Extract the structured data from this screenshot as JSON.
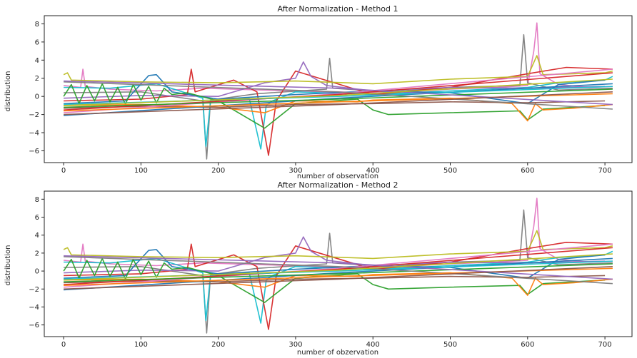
{
  "chart_data": [
    {
      "type": "line",
      "title": "After Normalization - Method 1",
      "xlabel": "number of observation",
      "ylabel": "distribution",
      "xlim": [
        -25,
        735
      ],
      "ylim": [
        -7.3,
        8.9
      ],
      "xticks": [
        0,
        100,
        200,
        300,
        400,
        500,
        600,
        700
      ],
      "yticks": [
        -6,
        -4,
        -2,
        0,
        2,
        4,
        6,
        8
      ],
      "grid": false,
      "legend": "none",
      "palette": [
        "#1f77b4",
        "#ff7f0e",
        "#2ca02c",
        "#d62728",
        "#9467bd",
        "#8c564b",
        "#e377c2",
        "#7f7f7f",
        "#bcbd22",
        "#17becf"
      ],
      "series": [
        {
          "color": "#e377c2",
          "x": [
            0,
            22,
            25,
            28,
            60,
            120,
            180,
            260,
            340,
            420,
            500,
            560,
            600,
            608,
            612,
            616,
            640,
            680,
            710
          ],
          "y": [
            1.2,
            1.0,
            3.0,
            1.1,
            0.8,
            0.6,
            0.9,
            0.7,
            0.5,
            0.4,
            0.8,
            1.0,
            1.2,
            5.0,
            8.1,
            2.5,
            1.3,
            1.0,
            1.1
          ]
        },
        {
          "color": "#7f7f7f",
          "x": [
            0,
            100,
            180,
            185,
            190,
            250,
            340,
            344,
            348,
            420,
            500,
            590,
            595,
            600,
            640,
            710
          ],
          "y": [
            0.4,
            0.5,
            -0.5,
            -6.9,
            -0.4,
            0.3,
            0.8,
            4.2,
            0.9,
            0.5,
            1.0,
            1.2,
            6.8,
            1.5,
            0.7,
            0.9
          ]
        },
        {
          "color": "#17becf",
          "x": [
            0,
            60,
            120,
            180,
            184,
            190,
            240,
            255,
            262,
            270,
            300,
            400,
            500,
            600,
            640,
            700,
            710
          ],
          "y": [
            1.0,
            0.9,
            1.4,
            -0.2,
            -5.5,
            -0.5,
            -0.2,
            -5.8,
            -1.0,
            -0.5,
            0.5,
            0.2,
            0.6,
            1.0,
            1.5,
            1.8,
            2.2
          ]
        },
        {
          "color": "#d62728",
          "x": [
            0,
            100,
            160,
            165,
            170,
            220,
            250,
            265,
            275,
            300,
            400,
            500,
            600,
            650,
            710
          ],
          "y": [
            -0.5,
            -0.3,
            0.2,
            3.0,
            0.5,
            1.8,
            0.5,
            -6.5,
            -0.5,
            2.8,
            0.2,
            1.0,
            2.5,
            3.2,
            3.0
          ]
        },
        {
          "color": "#9467bd",
          "x": [
            0,
            100,
            200,
            260,
            300,
            310,
            320,
            340,
            400,
            500,
            600,
            700
          ],
          "y": [
            -0.2,
            0.1,
            0.0,
            1.5,
            2.0,
            3.8,
            2.2,
            1.2,
            0.6,
            1.0,
            0.9,
            1.1
          ]
        },
        {
          "color": "#1f77b4",
          "x": [
            0,
            80,
            110,
            120,
            140,
            200,
            300,
            400,
            500,
            600,
            640,
            700
          ],
          "y": [
            -0.8,
            -0.5,
            2.3,
            2.4,
            0.5,
            -0.3,
            0.2,
            0.6,
            0.4,
            -0.8,
            1.3,
            1.8
          ]
        },
        {
          "color": "#2ca02c",
          "x": [
            0,
            10,
            20,
            30,
            40,
            50,
            60,
            70,
            80,
            90,
            100,
            110,
            120,
            130,
            140,
            160,
            200,
            260,
            300,
            380,
            400,
            420,
            500,
            590,
            600,
            620,
            700
          ],
          "y": [
            0.0,
            1.3,
            -0.8,
            1.2,
            -0.5,
            1.4,
            -0.6,
            1.0,
            -0.9,
            1.3,
            -0.4,
            1.1,
            -0.7,
            0.9,
            0.2,
            0.4,
            -0.5,
            -3.5,
            -0.8,
            -0.3,
            -1.5,
            -2.0,
            -1.8,
            -1.6,
            -2.6,
            -1.4,
            -1.0
          ]
        },
        {
          "color": "#ff7f0e",
          "x": [
            0,
            100,
            200,
            260,
            300,
            380,
            400,
            500,
            580,
            600,
            610,
            620,
            660,
            710
          ],
          "y": [
            -1.0,
            -0.9,
            -1.2,
            -1.8,
            -0.5,
            -0.6,
            -0.4,
            -0.2,
            -0.8,
            -2.7,
            -0.8,
            -1.5,
            -1.3,
            -0.9
          ]
        },
        {
          "color": "#bcbd22",
          "x": [
            0,
            5,
            10,
            100,
            200,
            300,
            400,
            500,
            600,
            612,
            620,
            700,
            710
          ],
          "y": [
            2.4,
            2.6,
            1.8,
            1.6,
            1.5,
            1.7,
            1.4,
            1.9,
            2.2,
            4.5,
            2.4,
            2.6,
            2.8
          ]
        },
        {
          "color": "#8c564b",
          "x": [
            0,
            100,
            200,
            300,
            400,
            500,
            600,
            700
          ],
          "y": [
            -1.3,
            -1.1,
            -1.2,
            -0.9,
            -0.8,
            -0.6,
            -0.7,
            -0.5
          ]
        },
        {
          "color": "#e377c2",
          "x": [
            0,
            355,
            710
          ],
          "y": [
            -1.8,
            0.3,
            3.0
          ]
        },
        {
          "color": "#d62728",
          "x": [
            0,
            355,
            710
          ],
          "y": [
            -1.5,
            0.2,
            2.6
          ]
        },
        {
          "color": "#1f77b4",
          "x": [
            0,
            355,
            710
          ],
          "y": [
            -2.1,
            -0.2,
            1.4
          ]
        },
        {
          "color": "#2ca02c",
          "x": [
            0,
            355,
            710
          ],
          "y": [
            -1.2,
            -0.3,
            0.8
          ]
        },
        {
          "color": "#17becf",
          "x": [
            0,
            355,
            710
          ],
          "y": [
            -0.9,
            0.0,
            1.1
          ]
        },
        {
          "color": "#7f7f7f",
          "x": [
            0,
            355,
            710
          ],
          "y": [
            1.6,
            0.5,
            -1.4
          ]
        },
        {
          "color": "#ff7f0e",
          "x": [
            0,
            355,
            710
          ],
          "y": [
            -1.6,
            -0.6,
            0.3
          ]
        },
        {
          "color": "#9467bd",
          "x": [
            0,
            355,
            710
          ],
          "y": [
            1.7,
            0.9,
            -0.9
          ]
        },
        {
          "color": "#8c564b",
          "x": [
            0,
            355,
            710
          ],
          "y": [
            -2.0,
            -0.9,
            0.5
          ]
        },
        {
          "color": "#bcbd22",
          "x": [
            0,
            355,
            710
          ],
          "y": [
            -1.0,
            0.1,
            1.9
          ]
        }
      ]
    },
    {
      "type": "line",
      "title": "After Normalization - Method 2",
      "xlabel": "number of obzervation",
      "ylabel": "distribution",
      "xlim": [
        -25,
        735
      ],
      "ylim": [
        -7.3,
        8.9
      ],
      "xticks": [
        0,
        100,
        200,
        300,
        400,
        500,
        600,
        700
      ],
      "yticks": [
        -6,
        -4,
        -2,
        0,
        2,
        4,
        6,
        8
      ],
      "grid": false,
      "legend": "none",
      "palette": [
        "#1f77b4",
        "#ff7f0e",
        "#2ca02c",
        "#d62728",
        "#9467bd",
        "#8c564b",
        "#e377c2",
        "#7f7f7f",
        "#bcbd22",
        "#17becf"
      ],
      "series": [
        {
          "color": "#e377c2",
          "x": [
            0,
            22,
            25,
            28,
            60,
            120,
            180,
            260,
            340,
            420,
            500,
            560,
            600,
            608,
            612,
            616,
            640,
            680,
            710
          ],
          "y": [
            1.2,
            1.0,
            3.0,
            1.1,
            0.8,
            0.6,
            0.9,
            0.7,
            0.5,
            0.4,
            0.8,
            1.0,
            1.2,
            5.0,
            8.1,
            2.5,
            1.3,
            1.0,
            1.1
          ]
        },
        {
          "color": "#7f7f7f",
          "x": [
            0,
            100,
            180,
            185,
            190,
            250,
            340,
            344,
            348,
            420,
            500,
            590,
            595,
            600,
            640,
            710
          ],
          "y": [
            0.4,
            0.5,
            -0.5,
            -6.9,
            -0.4,
            0.3,
            0.8,
            4.2,
            0.9,
            0.5,
            1.0,
            1.2,
            6.8,
            1.5,
            0.7,
            0.9
          ]
        },
        {
          "color": "#17becf",
          "x": [
            0,
            60,
            120,
            180,
            184,
            190,
            240,
            255,
            262,
            270,
            300,
            400,
            500,
            600,
            640,
            700,
            710
          ],
          "y": [
            1.0,
            0.9,
            1.4,
            -0.2,
            -5.5,
            -0.5,
            -0.2,
            -5.8,
            -1.0,
            -0.5,
            0.5,
            0.2,
            0.6,
            1.0,
            1.5,
            1.8,
            2.2
          ]
        },
        {
          "color": "#d62728",
          "x": [
            0,
            100,
            160,
            165,
            170,
            220,
            250,
            265,
            275,
            300,
            400,
            500,
            600,
            650,
            710
          ],
          "y": [
            -0.5,
            -0.3,
            0.2,
            3.0,
            0.5,
            1.8,
            0.5,
            -6.5,
            -0.5,
            2.8,
            0.2,
            1.0,
            2.5,
            3.2,
            3.0
          ]
        },
        {
          "color": "#9467bd",
          "x": [
            0,
            100,
            200,
            260,
            300,
            310,
            320,
            340,
            400,
            500,
            600,
            700
          ],
          "y": [
            -0.2,
            0.1,
            0.0,
            1.5,
            2.0,
            3.8,
            2.2,
            1.2,
            0.6,
            1.0,
            0.9,
            1.1
          ]
        },
        {
          "color": "#1f77b4",
          "x": [
            0,
            80,
            110,
            120,
            140,
            200,
            300,
            400,
            500,
            600,
            640,
            700
          ],
          "y": [
            -0.8,
            -0.5,
            2.3,
            2.4,
            0.5,
            -0.3,
            0.2,
            0.6,
            0.4,
            -0.8,
            1.3,
            1.8
          ]
        },
        {
          "color": "#2ca02c",
          "x": [
            0,
            10,
            20,
            30,
            40,
            50,
            60,
            70,
            80,
            90,
            100,
            110,
            120,
            130,
            140,
            160,
            200,
            260,
            300,
            380,
            400,
            420,
            500,
            590,
            600,
            620,
            700
          ],
          "y": [
            0.0,
            1.3,
            -0.8,
            1.2,
            -0.5,
            1.4,
            -0.6,
            1.0,
            -0.9,
            1.3,
            -0.4,
            1.1,
            -0.7,
            0.9,
            0.2,
            0.4,
            -0.5,
            -3.5,
            -0.8,
            -0.3,
            -1.5,
            -2.0,
            -1.8,
            -1.6,
            -2.6,
            -1.4,
            -1.0
          ]
        },
        {
          "color": "#ff7f0e",
          "x": [
            0,
            100,
            200,
            260,
            300,
            380,
            400,
            500,
            580,
            600,
            610,
            620,
            660,
            710
          ],
          "y": [
            -1.0,
            -0.9,
            -1.2,
            -1.8,
            -0.5,
            -0.6,
            -0.4,
            -0.2,
            -0.8,
            -2.7,
            -0.8,
            -1.5,
            -1.3,
            -0.9
          ]
        },
        {
          "color": "#bcbd22",
          "x": [
            0,
            5,
            10,
            100,
            200,
            300,
            400,
            500,
            600,
            612,
            620,
            700,
            710
          ],
          "y": [
            2.4,
            2.6,
            1.8,
            1.6,
            1.5,
            1.7,
            1.4,
            1.9,
            2.2,
            4.5,
            2.4,
            2.6,
            2.8
          ]
        },
        {
          "color": "#8c564b",
          "x": [
            0,
            100,
            200,
            300,
            400,
            500,
            600,
            700
          ],
          "y": [
            -1.3,
            -1.1,
            -1.2,
            -0.9,
            -0.8,
            -0.6,
            -0.7,
            -0.5
          ]
        },
        {
          "color": "#e377c2",
          "x": [
            0,
            355,
            710
          ],
          "y": [
            -1.8,
            0.3,
            3.0
          ]
        },
        {
          "color": "#d62728",
          "x": [
            0,
            355,
            710
          ],
          "y": [
            -1.5,
            0.2,
            2.6
          ]
        },
        {
          "color": "#1f77b4",
          "x": [
            0,
            355,
            710
          ],
          "y": [
            -2.1,
            -0.2,
            1.4
          ]
        },
        {
          "color": "#2ca02c",
          "x": [
            0,
            355,
            710
          ],
          "y": [
            -1.2,
            -0.3,
            0.8
          ]
        },
        {
          "color": "#17becf",
          "x": [
            0,
            355,
            710
          ],
          "y": [
            -0.9,
            0.0,
            1.1
          ]
        },
        {
          "color": "#7f7f7f",
          "x": [
            0,
            355,
            710
          ],
          "y": [
            1.6,
            0.5,
            -1.4
          ]
        },
        {
          "color": "#ff7f0e",
          "x": [
            0,
            355,
            710
          ],
          "y": [
            -1.6,
            -0.6,
            0.3
          ]
        },
        {
          "color": "#9467bd",
          "x": [
            0,
            355,
            710
          ],
          "y": [
            1.7,
            0.9,
            -0.9
          ]
        },
        {
          "color": "#8c564b",
          "x": [
            0,
            355,
            710
          ],
          "y": [
            -2.0,
            -0.9,
            0.5
          ]
        },
        {
          "color": "#bcbd22",
          "x": [
            0,
            355,
            710
          ],
          "y": [
            -1.0,
            0.1,
            1.9
          ]
        }
      ]
    }
  ]
}
